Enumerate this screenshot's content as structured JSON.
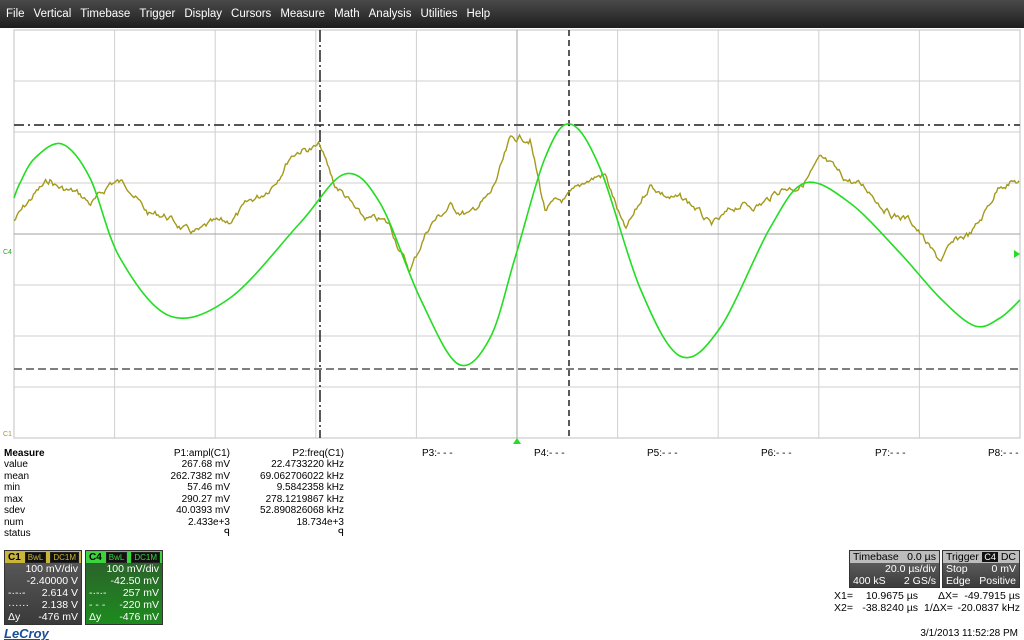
{
  "menu": [
    "File",
    "Vertical",
    "Timebase",
    "Trigger",
    "Display",
    "Cursors",
    "Measure",
    "Math",
    "Analysis",
    "Utilities",
    "Help"
  ],
  "colors": {
    "ch1": "#a39a1c",
    "ch4": "#22dd22",
    "grid": "#c8c8c8"
  },
  "measure": {
    "header": {
      "label": "Measure",
      "p1": "P1:ampl(C1)",
      "p2": "P2:freq(C1)",
      "p3": "P3:- - -",
      "p4": "P4:- - -",
      "p5": "P5:- - -",
      "p6": "P6:- - -",
      "p7": "P7:- - -",
      "p8": "P8:- - -"
    },
    "rows": [
      {
        "label": "value",
        "p1": "267.68 mV",
        "p2": "22.4733220 kHz"
      },
      {
        "label": "mean",
        "p1": "262.7382 mV",
        "p2": "69.062706022 kHz"
      },
      {
        "label": "min",
        "p1": "57.46 mV",
        "p2": "9.5842358 kHz"
      },
      {
        "label": "max",
        "p1": "290.27 mV",
        "p2": "278.1219867 kHz"
      },
      {
        "label": "sdev",
        "p1": "40.0393 mV",
        "p2": "52.890826068 kHz"
      },
      {
        "label": "num",
        "p1": "2.433e+3",
        "p2": "18.734e+3"
      },
      {
        "label": "status",
        "p1": "ꟼ",
        "p2": "ꟼ"
      }
    ]
  },
  "ch1": {
    "name": "C1",
    "tag1": "BwL",
    "tag2": "DC1M",
    "vdiv": "100 mV/div",
    "offset": "-2.40000 V",
    "cur1": "2.614 V",
    "cur2": "2.138 V",
    "dy_label": "Δy",
    "dy": "-476 mV"
  },
  "ch4": {
    "name": "C4",
    "tag1": "BwL",
    "tag2": "DC1M",
    "vdiv": "100 mV/div",
    "offset": "-42.50 mV",
    "cur1": "257 mV",
    "cur2": "-220 mV",
    "dy_label": "Δy",
    "dy": "-476 mV"
  },
  "timebase": {
    "title": "Timebase",
    "delay": "0.0 µs",
    "tdiv": "20.0 µs/div",
    "samples": "400 kS",
    "rate": "2 GS/s"
  },
  "trigger": {
    "title": "Trigger",
    "src": "C4",
    "coupling": "DC",
    "mode": "Stop",
    "level": "0 mV",
    "type": "Edge",
    "slope": "Positive"
  },
  "cursors": {
    "x1_label": "X1=",
    "x1": "10.9675 µs",
    "dx_label": "ΔX=",
    "dx": "-49.7915 µs",
    "x2_label": "X2=",
    "x2": "-38.8240 µs",
    "inv_label": "1/ΔX=",
    "inv": "-20.0837 kHz"
  },
  "logo": "LeCroy",
  "datetime": "3/1/2013 11:52:28 PM",
  "markers": {
    "c4": "C4",
    "c1": "C1"
  }
}
